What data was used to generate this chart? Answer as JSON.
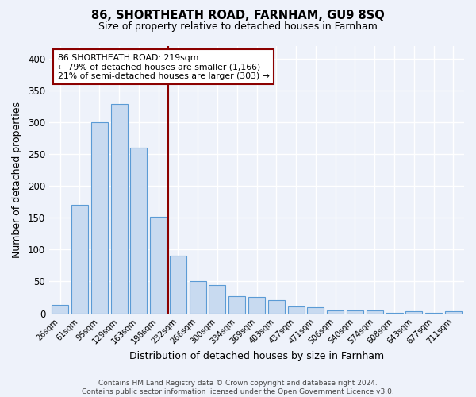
{
  "title": "86, SHORTHEATH ROAD, FARNHAM, GU9 8SQ",
  "subtitle": "Size of property relative to detached houses in Farnham",
  "xlabel": "Distribution of detached houses by size in Farnham",
  "ylabel": "Number of detached properties",
  "bar_labels": [
    "26sqm",
    "61sqm",
    "95sqm",
    "129sqm",
    "163sqm",
    "198sqm",
    "232sqm",
    "266sqm",
    "300sqm",
    "334sqm",
    "369sqm",
    "403sqm",
    "437sqm",
    "471sqm",
    "506sqm",
    "540sqm",
    "574sqm",
    "608sqm",
    "643sqm",
    "677sqm",
    "711sqm"
  ],
  "bar_heights": [
    13,
    170,
    300,
    328,
    260,
    152,
    91,
    50,
    44,
    27,
    26,
    21,
    11,
    10,
    4,
    4,
    4,
    1,
    3,
    1,
    3
  ],
  "bar_color": "#c8daf0",
  "bar_edge_color": "#5b9bd5",
  "vline_x": 5.5,
  "vline_color": "#8b0000",
  "annotation_line1": "86 SHORTHEATH ROAD: 219sqm",
  "annotation_line2": "← 79% of detached houses are smaller (1,166)",
  "annotation_line3": "21% of semi-detached houses are larger (303) →",
  "annotation_box_color": "white",
  "annotation_box_edge": "#8b0000",
  "ylim": [
    0,
    420
  ],
  "yticks": [
    0,
    50,
    100,
    150,
    200,
    250,
    300,
    350,
    400
  ],
  "background_color": "#eef2fa",
  "grid_color": "#ffffff",
  "footer": "Contains HM Land Registry data © Crown copyright and database right 2024.\nContains public sector information licensed under the Open Government Licence v3.0."
}
